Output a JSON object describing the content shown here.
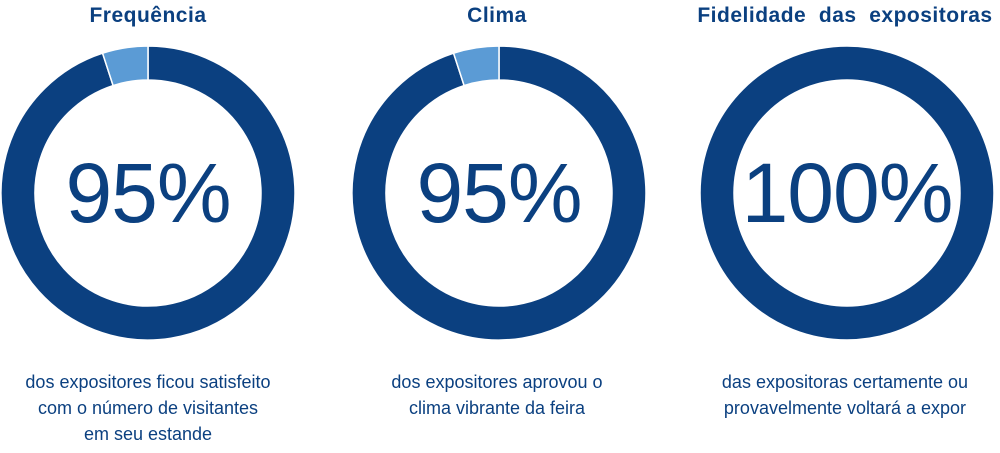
{
  "colors": {
    "main": "#0b4080",
    "accent": "#5b9bd5",
    "text": "#0b4080"
  },
  "chart_data": [
    {
      "type": "pie",
      "title": "Frequência",
      "value_label": "95%",
      "slices": [
        {
          "value": 95,
          "color": "#0b4080"
        },
        {
          "value": 5,
          "color": "#5b9bd5"
        }
      ],
      "caption": [
        "dos expositores ficou satisfeito",
        "com o número de visitantes",
        "em seu estande"
      ]
    },
    {
      "type": "pie",
      "title": "Clima",
      "value_label": "95%",
      "slices": [
        {
          "value": 95,
          "color": "#0b4080"
        },
        {
          "value": 5,
          "color": "#5b9bd5"
        }
      ],
      "caption": [
        "dos expositores aprovou o",
        "clima vibrante da feira"
      ]
    },
    {
      "type": "pie",
      "title": "Fidelidade  das  expositoras",
      "value_label": "100%",
      "slices": [
        {
          "value": 100,
          "color": "#0b4080"
        }
      ],
      "caption": [
        "das expositoras certamente ou",
        "provavelmente voltará a expor"
      ]
    }
  ]
}
